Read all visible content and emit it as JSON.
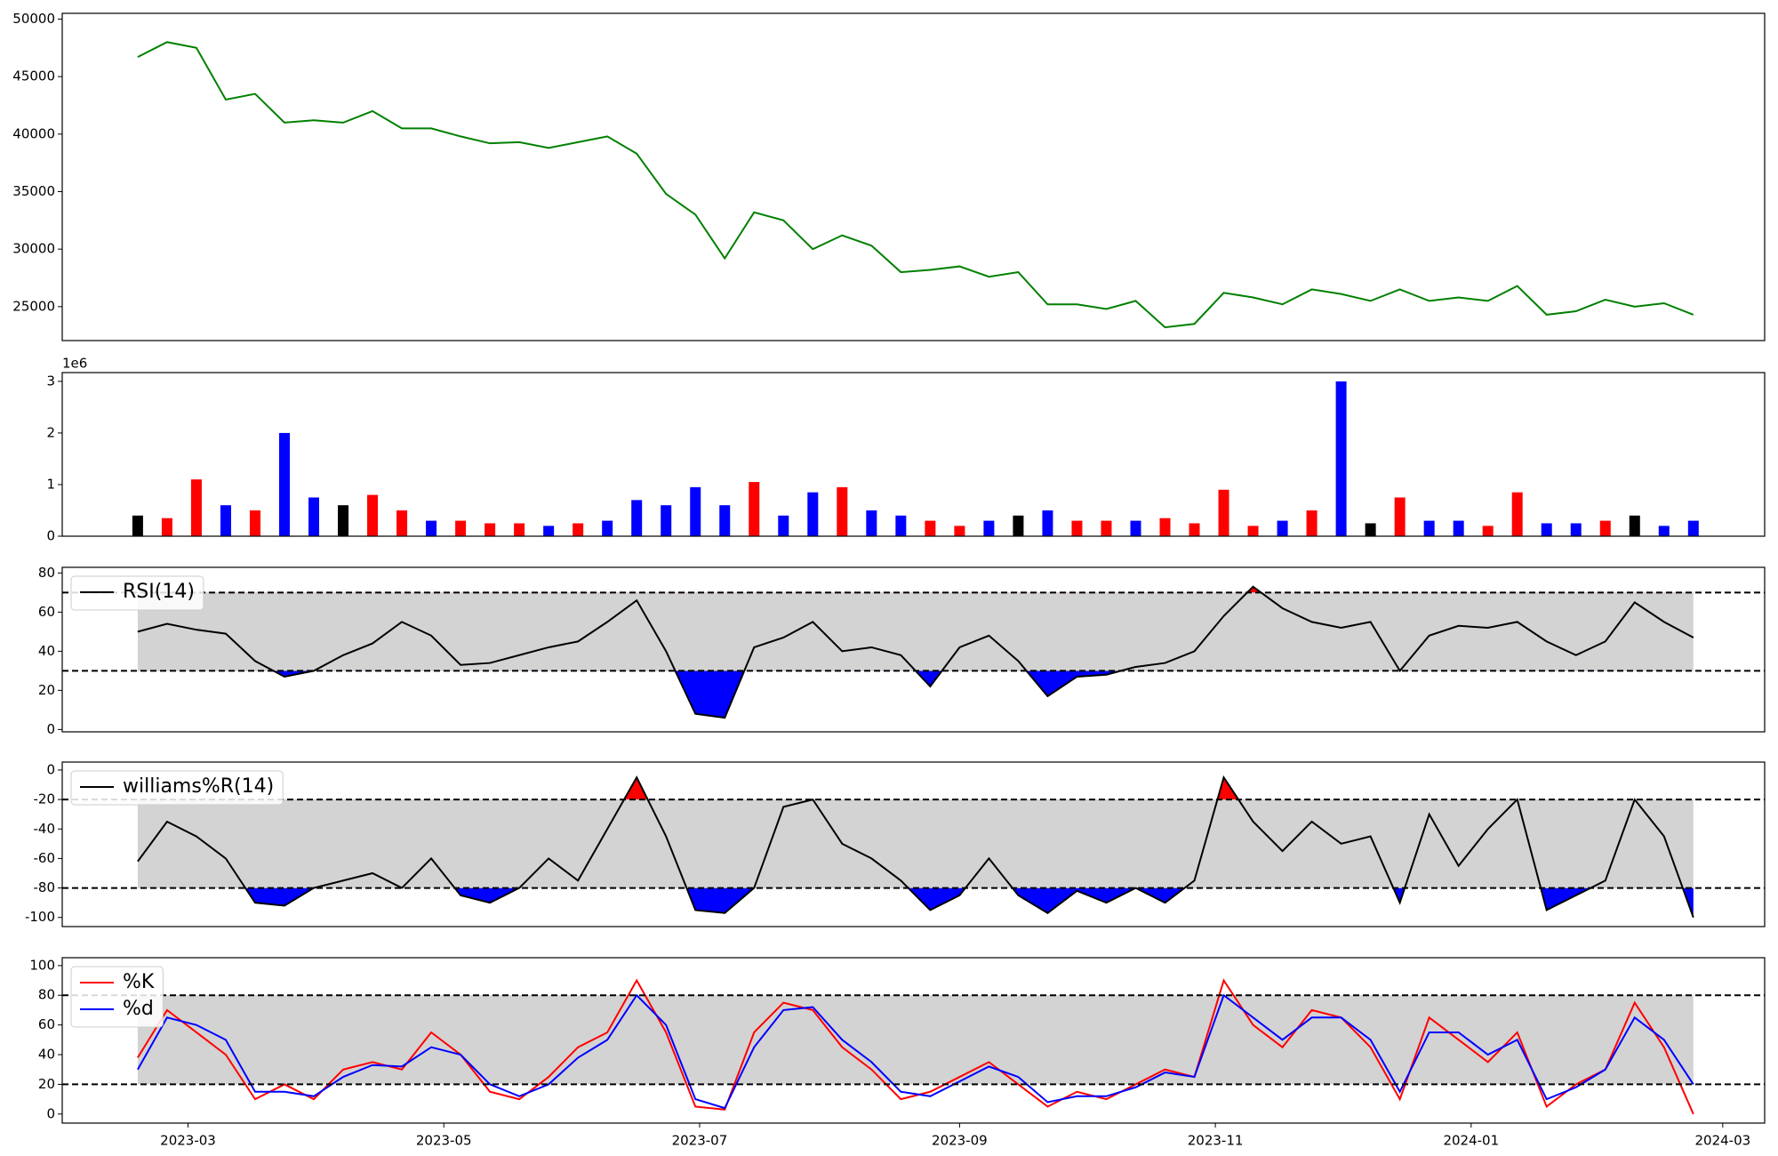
{
  "chart_data": [
    {
      "type": "line",
      "x": [
        "2023-02-17",
        "2023-02-24",
        "2023-03-03",
        "2023-03-10",
        "2023-03-17",
        "2023-03-24",
        "2023-03-31",
        "2023-04-07",
        "2023-04-14",
        "2023-04-21",
        "2023-04-28",
        "2023-05-05",
        "2023-05-12",
        "2023-05-19",
        "2023-05-26",
        "2023-06-02",
        "2023-06-09",
        "2023-06-16",
        "2023-06-23",
        "2023-06-30",
        "2023-07-07",
        "2023-07-14",
        "2023-07-21",
        "2023-07-28",
        "2023-08-04",
        "2023-08-11",
        "2023-08-18",
        "2023-08-25",
        "2023-09-01",
        "2023-09-08",
        "2023-09-15",
        "2023-09-22",
        "2023-09-29",
        "2023-10-06",
        "2023-10-13",
        "2023-10-20",
        "2023-10-27",
        "2023-11-03",
        "2023-11-10",
        "2023-11-17",
        "2023-11-24",
        "2023-12-01",
        "2023-12-08",
        "2023-12-15",
        "2023-12-22",
        "2023-12-29",
        "2024-01-05",
        "2024-01-12",
        "2024-01-19",
        "2024-01-26",
        "2024-02-02",
        "2024-02-09",
        "2024-02-16",
        "2024-02-23"
      ],
      "series": [
        {
          "color": "#008000",
          "values": [
            46700,
            48000,
            47500,
            43000,
            43500,
            41000,
            41200,
            41000,
            42000,
            40500,
            40500,
            39800,
            39200,
            39300,
            38800,
            39300,
            39800,
            38300,
            34800,
            33000,
            29200,
            33200,
            32500,
            30000,
            31200,
            30300,
            28000,
            28200,
            28500,
            27600,
            28000,
            25200,
            25200,
            24800,
            25500,
            23200,
            23500,
            26200,
            25800,
            25200,
            26500,
            26100,
            25500,
            26500,
            25500,
            25800,
            25500,
            26800,
            24300,
            24600,
            25600,
            25000,
            25300,
            24300
          ]
        }
      ],
      "xlim": [
        "2023-01-30",
        "2024-03-11"
      ],
      "ylim": [
        22050,
        50500
      ],
      "yticks": [
        25000,
        30000,
        35000,
        40000,
        45000,
        50000
      ]
    },
    {
      "type": "bar",
      "x": [
        "2023-02-17",
        "2023-02-24",
        "2023-03-03",
        "2023-03-10",
        "2023-03-17",
        "2023-03-24",
        "2023-03-31",
        "2023-04-07",
        "2023-04-14",
        "2023-04-21",
        "2023-04-28",
        "2023-05-05",
        "2023-05-12",
        "2023-05-19",
        "2023-05-26",
        "2023-06-02",
        "2023-06-09",
        "2023-06-16",
        "2023-06-23",
        "2023-06-30",
        "2023-07-07",
        "2023-07-14",
        "2023-07-21",
        "2023-07-28",
        "2023-08-04",
        "2023-08-11",
        "2023-08-18",
        "2023-08-25",
        "2023-09-01",
        "2023-09-08",
        "2023-09-15",
        "2023-09-22",
        "2023-09-29",
        "2023-10-06",
        "2023-10-13",
        "2023-10-20",
        "2023-10-27",
        "2023-11-03",
        "2023-11-10",
        "2023-11-17",
        "2023-11-24",
        "2023-12-01",
        "2023-12-08",
        "2023-12-15",
        "2023-12-22",
        "2023-12-29",
        "2024-01-05",
        "2024-01-12",
        "2024-01-19",
        "2024-01-26",
        "2024-02-02",
        "2024-02-09",
        "2024-02-16",
        "2024-02-23"
      ],
      "values": [
        400000,
        350000,
        1100000,
        600000,
        500000,
        2000000,
        750000,
        600000,
        800000,
        500000,
        300000,
        300000,
        250000,
        250000,
        200000,
        250000,
        300000,
        700000,
        600000,
        950000,
        600000,
        1050000,
        400000,
        850000,
        950000,
        500000,
        400000,
        300000,
        200000,
        300000,
        400000,
        500000,
        300000,
        300000,
        300000,
        350000,
        250000,
        900000,
        200000,
        300000,
        500000,
        3000000,
        250000,
        750000,
        300000,
        300000,
        200000,
        850000,
        250000,
        250000,
        300000,
        400000,
        200000,
        300000
      ],
      "colors": [
        "black",
        "red",
        "red",
        "blue",
        "red",
        "blue",
        "blue",
        "black",
        "red",
        "red",
        "blue",
        "red",
        "red",
        "red",
        "blue",
        "red",
        "blue",
        "blue",
        "blue",
        "blue",
        "blue",
        "red",
        "blue",
        "blue",
        "red",
        "blue",
        "blue",
        "red",
        "red",
        "blue",
        "black",
        "blue",
        "red",
        "red",
        "blue",
        "red",
        "red",
        "red",
        "red",
        "blue",
        "red",
        "blue",
        "black",
        "red",
        "blue",
        "blue",
        "red",
        "red",
        "blue",
        "blue",
        "red",
        "black",
        "blue",
        "blue"
      ],
      "offset_label": "1e6",
      "xlim": [
        "2023-01-30",
        "2024-03-11"
      ],
      "ylim": [
        0,
        3170000
      ],
      "yticks": [
        0,
        {
          "value": 1000000,
          "label": "1"
        },
        {
          "value": 2000000,
          "label": "2"
        },
        {
          "value": 3000000,
          "label": "3"
        }
      ]
    },
    {
      "type": "line",
      "x": [
        "2023-02-17",
        "2023-02-24",
        "2023-03-03",
        "2023-03-10",
        "2023-03-17",
        "2023-03-24",
        "2023-03-31",
        "2023-04-07",
        "2023-04-14",
        "2023-04-21",
        "2023-04-28",
        "2023-05-05",
        "2023-05-12",
        "2023-05-19",
        "2023-05-26",
        "2023-06-02",
        "2023-06-09",
        "2023-06-16",
        "2023-06-23",
        "2023-06-30",
        "2023-07-07",
        "2023-07-14",
        "2023-07-21",
        "2023-07-28",
        "2023-08-04",
        "2023-08-11",
        "2023-08-18",
        "2023-08-25",
        "2023-09-01",
        "2023-09-08",
        "2023-09-15",
        "2023-09-22",
        "2023-09-29",
        "2023-10-06",
        "2023-10-13",
        "2023-10-20",
        "2023-10-27",
        "2023-11-03",
        "2023-11-10",
        "2023-11-17",
        "2023-11-24",
        "2023-12-01",
        "2023-12-08",
        "2023-12-15",
        "2023-12-22",
        "2023-12-29",
        "2024-01-05",
        "2024-01-12",
        "2024-01-19",
        "2024-01-26",
        "2024-02-02",
        "2024-02-09",
        "2024-02-16",
        "2024-02-23"
      ],
      "series": [
        {
          "name": "RSI(14)",
          "color": "black",
          "values": [
            50,
            54,
            51,
            49,
            35,
            27,
            30,
            38,
            44,
            55,
            48,
            33,
            34,
            38,
            42,
            45,
            55,
            66,
            40,
            8,
            6,
            42,
            47,
            55,
            40,
            42,
            38,
            22,
            42,
            48,
            35,
            17,
            27,
            28,
            32,
            34,
            40,
            58,
            73,
            62,
            55,
            52,
            55,
            30,
            48,
            53,
            52,
            55,
            45,
            38,
            45,
            65,
            55,
            47
          ]
        }
      ],
      "hlines": [
        30,
        70
      ],
      "band_color": "#d3d3d3",
      "above_color": "red",
      "below_color": "blue",
      "xlim": [
        "2023-01-30",
        "2024-03-11"
      ],
      "ylim": [
        -1.2,
        82.9
      ],
      "yticks": [
        0,
        20,
        40,
        60,
        80
      ],
      "legend": "upper left"
    },
    {
      "type": "line",
      "x": [
        "2023-02-17",
        "2023-02-24",
        "2023-03-03",
        "2023-03-10",
        "2023-03-17",
        "2023-03-24",
        "2023-03-31",
        "2023-04-07",
        "2023-04-14",
        "2023-04-21",
        "2023-04-28",
        "2023-05-05",
        "2023-05-12",
        "2023-05-19",
        "2023-05-26",
        "2023-06-02",
        "2023-06-09",
        "2023-06-16",
        "2023-06-23",
        "2023-06-30",
        "2023-07-07",
        "2023-07-14",
        "2023-07-21",
        "2023-07-28",
        "2023-08-04",
        "2023-08-11",
        "2023-08-18",
        "2023-08-25",
        "2023-09-01",
        "2023-09-08",
        "2023-09-15",
        "2023-09-22",
        "2023-09-29",
        "2023-10-06",
        "2023-10-13",
        "2023-10-20",
        "2023-10-27",
        "2023-11-03",
        "2023-11-10",
        "2023-11-17",
        "2023-11-24",
        "2023-12-01",
        "2023-12-08",
        "2023-12-15",
        "2023-12-22",
        "2023-12-29",
        "2024-01-05",
        "2024-01-12",
        "2024-01-19",
        "2024-01-26",
        "2024-02-02",
        "2024-02-09",
        "2024-02-16",
        "2024-02-23"
      ],
      "series": [
        {
          "name": "williams%R(14)",
          "color": "black",
          "values": [
            -62,
            -35,
            -45,
            -60,
            -90,
            -92,
            -80,
            -75,
            -70,
            -80,
            -60,
            -85,
            -90,
            -80,
            -60,
            -75,
            -40,
            -5,
            -45,
            -95,
            -97,
            -80,
            -25,
            -20,
            -50,
            -60,
            -75,
            -95,
            -85,
            -60,
            -85,
            -97,
            -82,
            -90,
            -80,
            -90,
            -75,
            -5,
            -35,
            -55,
            -35,
            -50,
            -45,
            -90,
            -30,
            -65,
            -40,
            -20,
            -95,
            -85,
            -75,
            -20,
            -45,
            -100
          ]
        }
      ],
      "hlines": [
        -80,
        -20
      ],
      "band_color": "#d3d3d3",
      "above_color": "red",
      "below_color": "blue",
      "xlim": [
        "2023-01-30",
        "2024-03-11"
      ],
      "ylim": [
        -106.2,
        5.4
      ],
      "yticks": [
        -100,
        -80,
        -60,
        -40,
        -20,
        0
      ],
      "legend": "upper left"
    },
    {
      "type": "line",
      "x": [
        "2023-02-17",
        "2023-02-24",
        "2023-03-03",
        "2023-03-10",
        "2023-03-17",
        "2023-03-24",
        "2023-03-31",
        "2023-04-07",
        "2023-04-14",
        "2023-04-21",
        "2023-04-28",
        "2023-05-05",
        "2023-05-12",
        "2023-05-19",
        "2023-05-26",
        "2023-06-02",
        "2023-06-09",
        "2023-06-16",
        "2023-06-23",
        "2023-06-30",
        "2023-07-07",
        "2023-07-14",
        "2023-07-21",
        "2023-07-28",
        "2023-08-04",
        "2023-08-11",
        "2023-08-18",
        "2023-08-25",
        "2023-09-01",
        "2023-09-08",
        "2023-09-15",
        "2023-09-22",
        "2023-09-29",
        "2023-10-06",
        "2023-10-13",
        "2023-10-20",
        "2023-10-27",
        "2023-11-03",
        "2023-11-10",
        "2023-11-17",
        "2023-11-24",
        "2023-12-01",
        "2023-12-08",
        "2023-12-15",
        "2023-12-22",
        "2023-12-29",
        "2024-01-05",
        "2024-01-12",
        "2024-01-19",
        "2024-01-26",
        "2024-02-02",
        "2024-02-09",
        "2024-02-16",
        "2024-02-23"
      ],
      "series": [
        {
          "name": "%K",
          "color": "red",
          "values": [
            38,
            70,
            55,
            40,
            10,
            20,
            10,
            30,
            35,
            30,
            55,
            40,
            15,
            10,
            25,
            45,
            55,
            90,
            55,
            5,
            3,
            55,
            75,
            70,
            45,
            30,
            10,
            15,
            25,
            35,
            20,
            5,
            15,
            10,
            20,
            30,
            25,
            90,
            60,
            45,
            70,
            65,
            45,
            10,
            65,
            50,
            35,
            55,
            5,
            20,
            30,
            75,
            45,
            0
          ]
        },
        {
          "name": "%d",
          "color": "blue",
          "values": [
            30,
            65,
            60,
            50,
            15,
            15,
            12,
            25,
            33,
            32,
            45,
            40,
            20,
            12,
            20,
            38,
            50,
            80,
            60,
            10,
            4,
            45,
            70,
            72,
            50,
            35,
            15,
            12,
            22,
            32,
            25,
            8,
            12,
            12,
            18,
            28,
            25,
            80,
            65,
            50,
            65,
            65,
            50,
            15,
            55,
            55,
            40,
            50,
            10,
            18,
            30,
            65,
            50,
            20
          ]
        }
      ],
      "hlines": [
        20,
        80
      ],
      "band_color": "#d3d3d3",
      "xlim": [
        "2023-01-30",
        "2024-03-11"
      ],
      "ylim": [
        -6.1,
        105.3
      ],
      "yticks": [
        0,
        20,
        40,
        60,
        80,
        100
      ],
      "legend": "upper left",
      "xticks": [
        {
          "value": "2023-03-01",
          "label": "2023-03"
        },
        {
          "value": "2023-05-01",
          "label": "2023-05"
        },
        {
          "value": "2023-07-01",
          "label": "2023-07"
        },
        {
          "value": "2023-09-01",
          "label": "2023-09"
        },
        {
          "value": "2023-11-01",
          "label": "2023-11"
        },
        {
          "value": "2024-01-01",
          "label": "2024-01"
        },
        {
          "value": "2024-03-01",
          "label": "2024-03"
        }
      ]
    }
  ]
}
